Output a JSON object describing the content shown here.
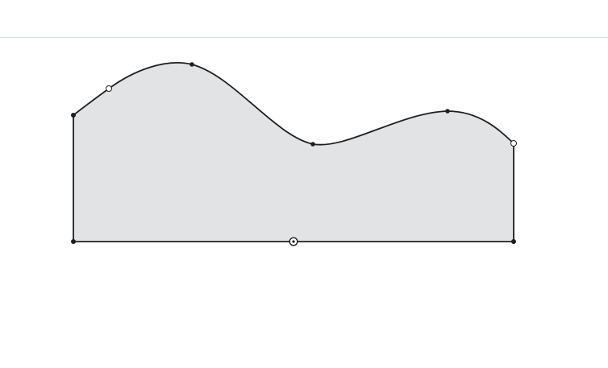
{
  "sketch": {
    "shape_fill": "#e1e3e5",
    "stroke_color": "#1f1f1f",
    "guide_color": "#c9e4f5",
    "handle_fill": "#ffffff"
  }
}
